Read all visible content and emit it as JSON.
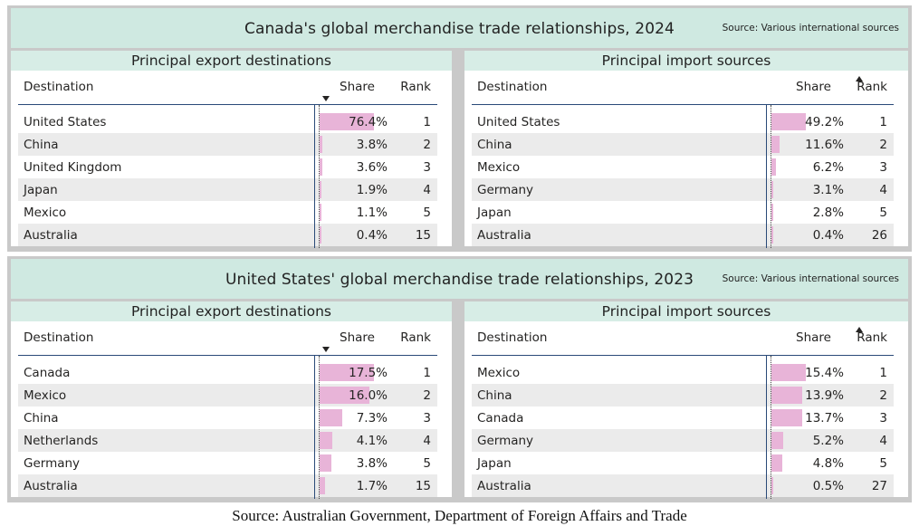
{
  "chart_data": [
    {
      "type": "table",
      "title": "Canada's global merchandise trade relationships, 2024",
      "source": "Source: Various international sources",
      "tables": [
        {
          "title": "Principal export destinations",
          "columns": [
            "Destination",
            "Share",
            "Rank"
          ],
          "sort": "share-desc",
          "rows": [
            {
              "name": "United States",
              "share": 76.4,
              "share_label": "76.4%",
              "rank": "1"
            },
            {
              "name": "China",
              "share": 3.8,
              "share_label": "3.8%",
              "rank": "2"
            },
            {
              "name": "United Kingdom",
              "share": 3.6,
              "share_label": "3.6%",
              "rank": "3"
            },
            {
              "name": "Japan",
              "share": 1.9,
              "share_label": "1.9%",
              "rank": "4"
            },
            {
              "name": "Mexico",
              "share": 1.1,
              "share_label": "1.1%",
              "rank": "5"
            },
            {
              "name": "Australia",
              "share": 0.4,
              "share_label": "0.4%",
              "rank": "15"
            }
          ]
        },
        {
          "title": "Principal import sources",
          "columns": [
            "Destination",
            "Share",
            "Rank"
          ],
          "sort": "rank-asc",
          "rows": [
            {
              "name": "United States",
              "share": 49.2,
              "share_label": "49.2%",
              "rank": "1"
            },
            {
              "name": "China",
              "share": 11.6,
              "share_label": "11.6%",
              "rank": "2"
            },
            {
              "name": "Mexico",
              "share": 6.2,
              "share_label": "6.2%",
              "rank": "3"
            },
            {
              "name": "Germany",
              "share": 3.1,
              "share_label": "3.1%",
              "rank": "4"
            },
            {
              "name": "Japan",
              "share": 2.8,
              "share_label": "2.8%",
              "rank": "5"
            },
            {
              "name": "Australia",
              "share": 0.4,
              "share_label": "0.4%",
              "rank": "26"
            }
          ]
        }
      ]
    },
    {
      "type": "table",
      "title": "United States' global merchandise trade relationships, 2023",
      "source": "Source: Various international sources",
      "tables": [
        {
          "title": "Principal export destinations",
          "columns": [
            "Destination",
            "Share",
            "Rank"
          ],
          "sort": "share-desc",
          "rows": [
            {
              "name": "Canada",
              "share": 17.5,
              "share_label": "17.5%",
              "rank": "1"
            },
            {
              "name": "Mexico",
              "share": 16.0,
              "share_label": "16.0%",
              "rank": "2"
            },
            {
              "name": "China",
              "share": 7.3,
              "share_label": "7.3%",
              "rank": "3"
            },
            {
              "name": "Netherlands",
              "share": 4.1,
              "share_label": "4.1%",
              "rank": "4"
            },
            {
              "name": "Germany",
              "share": 3.8,
              "share_label": "3.8%",
              "rank": "5"
            },
            {
              "name": "Australia",
              "share": 1.7,
              "share_label": "1.7%",
              "rank": "15"
            }
          ]
        },
        {
          "title": "Principal import sources",
          "columns": [
            "Destination",
            "Share",
            "Rank"
          ],
          "sort": "rank-asc",
          "rows": [
            {
              "name": "Mexico",
              "share": 15.4,
              "share_label": "15.4%",
              "rank": "1"
            },
            {
              "name": "China",
              "share": 13.9,
              "share_label": "13.9%",
              "rank": "2"
            },
            {
              "name": "Canada",
              "share": 13.7,
              "share_label": "13.7%",
              "rank": "3"
            },
            {
              "name": "Germany",
              "share": 5.2,
              "share_label": "5.2%",
              "rank": "4"
            },
            {
              "name": "Japan",
              "share": 4.8,
              "share_label": "4.8%",
              "rank": "5"
            },
            {
              "name": "Australia",
              "share": 0.5,
              "share_label": "0.5%",
              "rank": "27"
            }
          ]
        }
      ]
    }
  ],
  "colors": {
    "bar": "#e8b4d8",
    "header_band": "#cfe9e1",
    "card_header": "#d7ede6",
    "alt_row": "#ebebeb",
    "frame": "#c9c9c9",
    "rule": "#2a4a78"
  },
  "footer": "Source: Australian Government, Department of Foreign Affairs and Trade"
}
